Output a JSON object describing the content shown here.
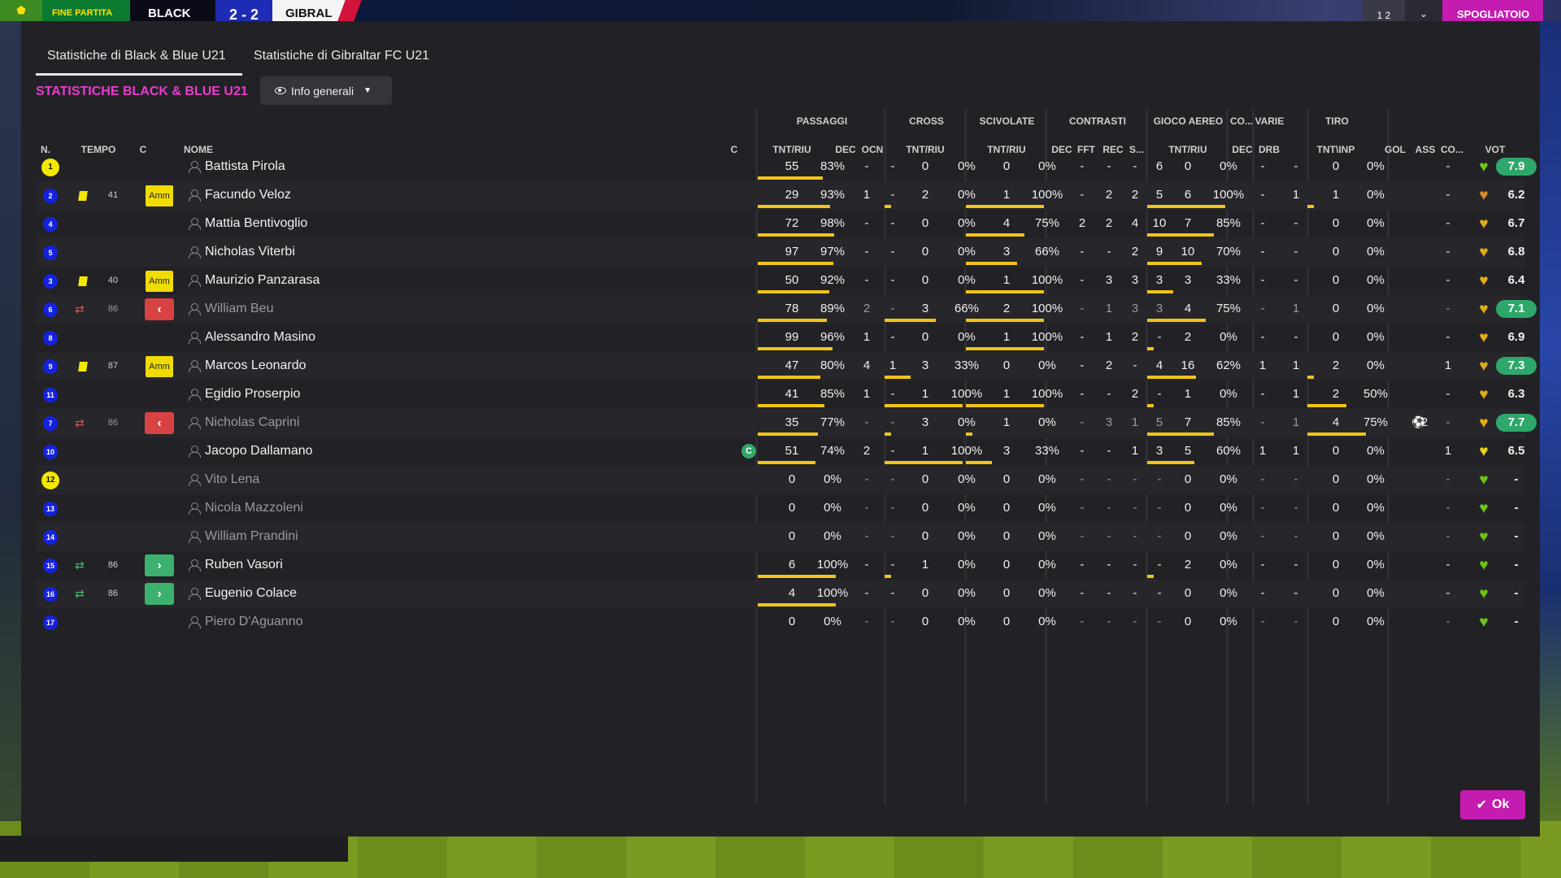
{
  "topbar": {
    "logo_icon": "club-crest-icon",
    "status": "FINE PARTITA",
    "home_team": "BLACK",
    "score": "2 - 2",
    "away_team": "GIBRAL",
    "mini_score": "1 2",
    "chevron": "⌄",
    "action_button": "SPOGLIATOIO"
  },
  "tabs": [
    {
      "label": "Statistiche di Black & Blue U21",
      "active": true
    },
    {
      "label": "Statistiche di Gibraltar FC U21",
      "active": false
    }
  ],
  "section_title": "STATISTICHE BLACK & BLUE U21",
  "view_dropdown": "Info generali",
  "groups": {
    "passaggi": "PASSAGGI",
    "cross": "CROSS",
    "scivolate": "SCIVOLATE",
    "contrasti": "CONTRASTI",
    "gioco_aereo": "GIOCO AEREO",
    "co": "CO...",
    "varie": "VARIE",
    "tiro": "TIRO"
  },
  "headers": {
    "n": "N.",
    "tempo": "TEMPO",
    "c": "C",
    "nome": "NOME",
    "cap": "C",
    "pass_tnt": "TNT/RIU",
    "pass_dec": "DEC",
    "pass_ocn": "OCN",
    "cross_tnt": "TNT/RIU",
    "sciv_tnt": "TNT/RIU",
    "con_dec": "DEC",
    "con_fft": "FFT",
    "con_rec": "REC",
    "con_s": "S...",
    "aereo_tnt": "TNT/RIU",
    "co_dec": "DEC",
    "varie_drb": "DRB",
    "tiro_tnt": "TNT\\INP",
    "gol": "GOL",
    "ass": "ASS",
    "co2": "CO...",
    "vot": "VOT"
  },
  "colors": {
    "accent": "#c41bb0",
    "title_pink": "#e83ccc",
    "bar_yellow": "#f0c419",
    "vote_green": "#2ea86a",
    "card_yellow": "#f0dc00",
    "sub_out_red": "#d94242",
    "sub_in_green": "#3cb06e",
    "shirt_blue": "#1422e0",
    "gk_yellow": "#f5e800"
  },
  "players": [
    {
      "num": "1",
      "gk": true,
      "card": false,
      "sub": null,
      "minute": "",
      "ammo": "",
      "name": "Battista Pirola",
      "dim": false,
      "captain": "",
      "pass_t": "55",
      "pass_p": "83%",
      "pass_r": 0.83,
      "pass_dec": "-",
      "pass_ocn": "-",
      "cross_t": "0",
      "cross_p": "0%",
      "cross_r": 0,
      "sciv_t": "0",
      "sciv_p": "0%",
      "sciv_r": 0,
      "con_dec": "-",
      "con_fft": "-",
      "con_rec": "-",
      "con_s": "6",
      "aer_t": "0",
      "aer_p": "0%",
      "aer_r": 0,
      "co_dec": "-",
      "drb": "-",
      "tiro_t": "0",
      "tiro_p": "0%",
      "tiro_r": 0,
      "gol": "",
      "goal_icon": false,
      "ass": "-",
      "heart": "green",
      "vote": "7.9",
      "vote_green": true
    },
    {
      "num": "2",
      "gk": false,
      "card": true,
      "sub": null,
      "minute": "41",
      "ammo": "Amm",
      "name": "Facundo Veloz",
      "dim": false,
      "captain": "",
      "pass_t": "29",
      "pass_p": "93%",
      "pass_r": 0.93,
      "pass_dec": "1",
      "pass_ocn": "-",
      "cross_t": "2",
      "cross_p": "0%",
      "cross_r": 0,
      "sciv_t": "1",
      "sciv_p": "100%",
      "sciv_r": 1,
      "con_dec": "-",
      "con_fft": "2",
      "con_rec": "2",
      "con_s": "5",
      "aer_t": "6",
      "aer_p": "100%",
      "aer_r": 1,
      "co_dec": "-",
      "drb": "1",
      "tiro_t": "1",
      "tiro_p": "0%",
      "tiro_r": 0,
      "gol": "",
      "goal_icon": false,
      "ass": "-",
      "heart": "orange",
      "vote": "6.2",
      "vote_green": false
    },
    {
      "num": "4",
      "gk": false,
      "card": false,
      "sub": null,
      "minute": "",
      "ammo": "",
      "name": "Mattia Bentivoglio",
      "dim": false,
      "captain": "",
      "pass_t": "72",
      "pass_p": "98%",
      "pass_r": 0.98,
      "pass_dec": "-",
      "pass_ocn": "-",
      "cross_t": "0",
      "cross_p": "0%",
      "cross_r": 0,
      "sciv_t": "4",
      "sciv_p": "75%",
      "sciv_r": 0.75,
      "con_dec": "2",
      "con_fft": "2",
      "con_rec": "4",
      "con_s": "10",
      "aer_t": "7",
      "aer_p": "85%",
      "aer_r": 0.85,
      "co_dec": "-",
      "drb": "-",
      "tiro_t": "0",
      "tiro_p": "0%",
      "tiro_r": 0,
      "gol": "",
      "goal_icon": false,
      "ass": "-",
      "heart": "gold",
      "vote": "6.7",
      "vote_green": false
    },
    {
      "num": "5",
      "gk": false,
      "card": false,
      "sub": null,
      "minute": "",
      "ammo": "",
      "name": "Nicholas Viterbi",
      "dim": false,
      "captain": "",
      "pass_t": "97",
      "pass_p": "97%",
      "pass_r": 0.97,
      "pass_dec": "-",
      "pass_ocn": "-",
      "cross_t": "0",
      "cross_p": "0%",
      "cross_r": 0,
      "sciv_t": "3",
      "sciv_p": "66%",
      "sciv_r": 0.66,
      "con_dec": "-",
      "con_fft": "-",
      "con_rec": "2",
      "con_s": "9",
      "aer_t": "10",
      "aer_p": "70%",
      "aer_r": 0.7,
      "co_dec": "-",
      "drb": "-",
      "tiro_t": "0",
      "tiro_p": "0%",
      "tiro_r": 0,
      "gol": "",
      "goal_icon": false,
      "ass": "-",
      "heart": "gold",
      "vote": "6.8",
      "vote_green": false
    },
    {
      "num": "3",
      "gk": false,
      "card": true,
      "sub": null,
      "minute": "40",
      "ammo": "Amm",
      "name": "Maurizio Panzarasa",
      "dim": false,
      "captain": "",
      "pass_t": "50",
      "pass_p": "92%",
      "pass_r": 0.92,
      "pass_dec": "-",
      "pass_ocn": "-",
      "cross_t": "0",
      "cross_p": "0%",
      "cross_r": 0,
      "sciv_t": "1",
      "sciv_p": "100%",
      "sciv_r": 1,
      "con_dec": "-",
      "con_fft": "3",
      "con_rec": "3",
      "con_s": "3",
      "aer_t": "3",
      "aer_p": "33%",
      "aer_r": 0.33,
      "co_dec": "-",
      "drb": "-",
      "tiro_t": "0",
      "tiro_p": "0%",
      "tiro_r": 0,
      "gol": "",
      "goal_icon": false,
      "ass": "-",
      "heart": "gold",
      "vote": "6.4",
      "vote_green": false
    },
    {
      "num": "6",
      "gk": false,
      "card": false,
      "sub": "out",
      "minute": "86",
      "ammo": "",
      "name": "William Beu",
      "dim": true,
      "captain": "",
      "pass_t": "78",
      "pass_p": "89%",
      "pass_r": 0.89,
      "pass_dec": "2",
      "pass_ocn": "-",
      "cross_t": "3",
      "cross_p": "66%",
      "cross_r": 0.66,
      "sciv_t": "2",
      "sciv_p": "100%",
      "sciv_r": 1,
      "con_dec": "-",
      "con_fft": "1",
      "con_rec": "3",
      "con_s": "3",
      "aer_t": "4",
      "aer_p": "75%",
      "aer_r": 0.75,
      "co_dec": "-",
      "drb": "1",
      "tiro_t": "0",
      "tiro_p": "0%",
      "tiro_r": 0,
      "gol": "",
      "goal_icon": false,
      "ass": "-",
      "heart": "gold",
      "vote": "7.1",
      "vote_green": true
    },
    {
      "num": "8",
      "gk": false,
      "card": false,
      "sub": null,
      "minute": "",
      "ammo": "",
      "name": "Alessandro Masino",
      "dim": false,
      "captain": "",
      "pass_t": "99",
      "pass_p": "96%",
      "pass_r": 0.96,
      "pass_dec": "1",
      "pass_ocn": "-",
      "cross_t": "0",
      "cross_p": "0%",
      "cross_r": 0,
      "sciv_t": "1",
      "sciv_p": "100%",
      "sciv_r": 1,
      "con_dec": "-",
      "con_fft": "1",
      "con_rec": "2",
      "con_s": "-",
      "aer_t": "2",
      "aer_p": "0%",
      "aer_r": 0,
      "co_dec": "-",
      "drb": "-",
      "tiro_t": "0",
      "tiro_p": "0%",
      "tiro_r": 0,
      "gol": "",
      "goal_icon": false,
      "ass": "-",
      "heart": "gold",
      "vote": "6.9",
      "vote_green": false
    },
    {
      "num": "9",
      "gk": false,
      "card": true,
      "sub": null,
      "minute": "87",
      "ammo": "Amm",
      "name": "Marcos Leonardo",
      "dim": false,
      "captain": "",
      "pass_t": "47",
      "pass_p": "80%",
      "pass_r": 0.8,
      "pass_dec": "4",
      "pass_ocn": "1",
      "cross_t": "3",
      "cross_p": "33%",
      "cross_r": 0.33,
      "sciv_t": "0",
      "sciv_p": "0%",
      "sciv_r": 0,
      "con_dec": "-",
      "con_fft": "2",
      "con_rec": "-",
      "con_s": "4",
      "aer_t": "16",
      "aer_p": "62%",
      "aer_r": 0.62,
      "co_dec": "1",
      "drb": "1",
      "tiro_t": "2",
      "tiro_p": "0%",
      "tiro_r": 0,
      "gol": "",
      "goal_icon": false,
      "ass": "1",
      "heart": "gold",
      "vote": "7.3",
      "vote_green": true
    },
    {
      "num": "11",
      "gk": false,
      "card": false,
      "sub": null,
      "minute": "",
      "ammo": "",
      "name": "Egidio Proserpio",
      "dim": false,
      "captain": "",
      "pass_t": "41",
      "pass_p": "85%",
      "pass_r": 0.85,
      "pass_dec": "1",
      "pass_ocn": "-",
      "cross_t": "1",
      "cross_p": "100%",
      "cross_r": 1,
      "sciv_t": "1",
      "sciv_p": "100%",
      "sciv_r": 1,
      "con_dec": "-",
      "con_fft": "-",
      "con_rec": "2",
      "con_s": "-",
      "aer_t": "1",
      "aer_p": "0%",
      "aer_r": 0,
      "co_dec": "-",
      "drb": "1",
      "tiro_t": "2",
      "tiro_p": "50%",
      "tiro_r": 0.5,
      "gol": "",
      "goal_icon": false,
      "ass": "-",
      "heart": "gold",
      "vote": "6.3",
      "vote_green": false
    },
    {
      "num": "7",
      "gk": false,
      "card": false,
      "sub": "out",
      "minute": "86",
      "ammo": "",
      "name": "Nicholas Caprini",
      "dim": true,
      "captain": "",
      "pass_t": "35",
      "pass_p": "77%",
      "pass_r": 0.77,
      "pass_dec": "-",
      "pass_ocn": "-",
      "cross_t": "3",
      "cross_p": "0%",
      "cross_r": 0,
      "sciv_t": "1",
      "sciv_p": "0%",
      "sciv_r": 0,
      "con_dec": "-",
      "con_fft": "3",
      "con_rec": "1",
      "con_s": "5",
      "aer_t": "7",
      "aer_p": "85%",
      "aer_r": 0.85,
      "co_dec": "-",
      "drb": "1",
      "tiro_t": "4",
      "tiro_p": "75%",
      "tiro_r": 0.75,
      "gol": "2",
      "goal_icon": true,
      "ass": "-",
      "heart": "gold",
      "vote": "7.7",
      "vote_green": true
    },
    {
      "num": "10",
      "gk": false,
      "card": false,
      "sub": null,
      "minute": "",
      "ammo": "",
      "name": "Jacopo Dallamano",
      "dim": false,
      "captain": "C",
      "pass_t": "51",
      "pass_p": "74%",
      "pass_r": 0.74,
      "pass_dec": "2",
      "pass_ocn": "-",
      "cross_t": "1",
      "cross_p": "100%",
      "cross_r": 1,
      "sciv_t": "3",
      "sciv_p": "33%",
      "sciv_r": 0.33,
      "con_dec": "-",
      "con_fft": "-",
      "con_rec": "1",
      "con_s": "3",
      "aer_t": "5",
      "aer_p": "60%",
      "aer_r": 0.6,
      "co_dec": "1",
      "drb": "1",
      "tiro_t": "0",
      "tiro_p": "0%",
      "tiro_r": 0,
      "gol": "",
      "goal_icon": false,
      "ass": "1",
      "heart": "yellow",
      "vote": "6.5",
      "vote_green": false
    },
    {
      "num": "12",
      "gk": true,
      "card": false,
      "sub": null,
      "minute": "",
      "ammo": "",
      "name": "Vito Lena",
      "dim": true,
      "captain": "",
      "pass_t": "0",
      "pass_p": "0%",
      "pass_r": 0,
      "pass_dec": "-",
      "pass_ocn": "-",
      "cross_t": "0",
      "cross_p": "0%",
      "cross_r": 0,
      "sciv_t": "0",
      "sciv_p": "0%",
      "sciv_r": 0,
      "con_dec": "-",
      "con_fft": "-",
      "con_rec": "-",
      "con_s": "-",
      "aer_t": "0",
      "aer_p": "0%",
      "aer_r": 0,
      "co_dec": "-",
      "drb": "-",
      "tiro_t": "0",
      "tiro_p": "0%",
      "tiro_r": 0,
      "gol": "",
      "goal_icon": false,
      "ass": "-",
      "heart": "green",
      "vote": "-",
      "vote_green": false
    },
    {
      "num": "13",
      "gk": false,
      "card": false,
      "sub": null,
      "minute": "",
      "ammo": "",
      "name": "Nicola Mazzoleni",
      "dim": true,
      "captain": "",
      "pass_t": "0",
      "pass_p": "0%",
      "pass_r": 0,
      "pass_dec": "-",
      "pass_ocn": "-",
      "cross_t": "0",
      "cross_p": "0%",
      "cross_r": 0,
      "sciv_t": "0",
      "sciv_p": "0%",
      "sciv_r": 0,
      "con_dec": "-",
      "con_fft": "-",
      "con_rec": "-",
      "con_s": "-",
      "aer_t": "0",
      "aer_p": "0%",
      "aer_r": 0,
      "co_dec": "-",
      "drb": "-",
      "tiro_t": "0",
      "tiro_p": "0%",
      "tiro_r": 0,
      "gol": "",
      "goal_icon": false,
      "ass": "-",
      "heart": "green",
      "vote": "-",
      "vote_green": false
    },
    {
      "num": "14",
      "gk": false,
      "card": false,
      "sub": null,
      "minute": "",
      "ammo": "",
      "name": "William Prandini",
      "dim": true,
      "captain": "",
      "pass_t": "0",
      "pass_p": "0%",
      "pass_r": 0,
      "pass_dec": "-",
      "pass_ocn": "-",
      "cross_t": "0",
      "cross_p": "0%",
      "cross_r": 0,
      "sciv_t": "0",
      "sciv_p": "0%",
      "sciv_r": 0,
      "con_dec": "-",
      "con_fft": "-",
      "con_rec": "-",
      "con_s": "-",
      "aer_t": "0",
      "aer_p": "0%",
      "aer_r": 0,
      "co_dec": "-",
      "drb": "-",
      "tiro_t": "0",
      "tiro_p": "0%",
      "tiro_r": 0,
      "gol": "",
      "goal_icon": false,
      "ass": "-",
      "heart": "green",
      "vote": "-",
      "vote_green": false
    },
    {
      "num": "15",
      "gk": false,
      "card": false,
      "sub": "in",
      "minute": "86",
      "ammo": "",
      "name": "Ruben Vasori",
      "dim": false,
      "captain": "",
      "pass_t": "6",
      "pass_p": "100%",
      "pass_r": 1,
      "pass_dec": "-",
      "pass_ocn": "-",
      "cross_t": "1",
      "cross_p": "0%",
      "cross_r": 0,
      "sciv_t": "0",
      "sciv_p": "0%",
      "sciv_r": 0,
      "con_dec": "-",
      "con_fft": "-",
      "con_rec": "-",
      "con_s": "-",
      "aer_t": "2",
      "aer_p": "0%",
      "aer_r": 0,
      "co_dec": "-",
      "drb": "-",
      "tiro_t": "0",
      "tiro_p": "0%",
      "tiro_r": 0,
      "gol": "",
      "goal_icon": false,
      "ass": "-",
      "heart": "green",
      "vote": "-",
      "vote_green": false
    },
    {
      "num": "16",
      "gk": false,
      "card": false,
      "sub": "in",
      "minute": "86",
      "ammo": "",
      "name": "Eugenio Colace",
      "dim": false,
      "captain": "",
      "pass_t": "4",
      "pass_p": "100%",
      "pass_r": 1,
      "pass_dec": "-",
      "pass_ocn": "-",
      "cross_t": "0",
      "cross_p": "0%",
      "cross_r": 0,
      "sciv_t": "0",
      "sciv_p": "0%",
      "sciv_r": 0,
      "con_dec": "-",
      "con_fft": "-",
      "con_rec": "-",
      "con_s": "-",
      "aer_t": "0",
      "aer_p": "0%",
      "aer_r": 0,
      "co_dec": "-",
      "drb": "-",
      "tiro_t": "0",
      "tiro_p": "0%",
      "tiro_r": 0,
      "gol": "",
      "goal_icon": false,
      "ass": "-",
      "heart": "green",
      "vote": "-",
      "vote_green": false
    },
    {
      "num": "17",
      "gk": false,
      "card": false,
      "sub": null,
      "minute": "",
      "ammo": "",
      "name": "Piero D'Aguanno",
      "dim": true,
      "captain": "",
      "pass_t": "0",
      "pass_p": "0%",
      "pass_r": 0,
      "pass_dec": "-",
      "pass_ocn": "-",
      "cross_t": "0",
      "cross_p": "0%",
      "cross_r": 0,
      "sciv_t": "0",
      "sciv_p": "0%",
      "sciv_r": 0,
      "con_dec": "-",
      "con_fft": "-",
      "con_rec": "-",
      "con_s": "-",
      "aer_t": "0",
      "aer_p": "0%",
      "aer_r": 0,
      "co_dec": "-",
      "drb": "-",
      "tiro_t": "0",
      "tiro_p": "0%",
      "tiro_r": 0,
      "gol": "",
      "goal_icon": false,
      "ass": "-",
      "heart": "green",
      "vote": "-",
      "vote_green": false
    }
  ],
  "ok_button": "Ok"
}
